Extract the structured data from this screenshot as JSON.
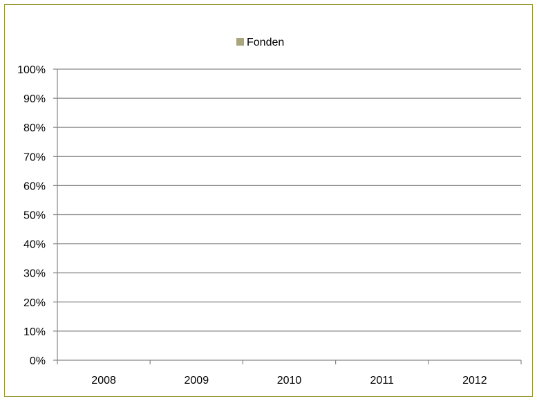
{
  "chart_data": {
    "type": "bar",
    "stacked": true,
    "categories": [
      "2008",
      "2009",
      "2010",
      "2011",
      "2012"
    ],
    "series": [
      {
        "name": "Fonden",
        "color": "#a9a57c",
        "values": [
          0,
          0,
          0,
          0,
          0
        ]
      }
    ],
    "ylim": [
      0,
      100
    ],
    "ytick_step": 10,
    "ytick_suffix": "%",
    "grid": true,
    "legend_position": "top-center",
    "frame_color": "#9a9a3c",
    "grid_color": "#868686"
  }
}
